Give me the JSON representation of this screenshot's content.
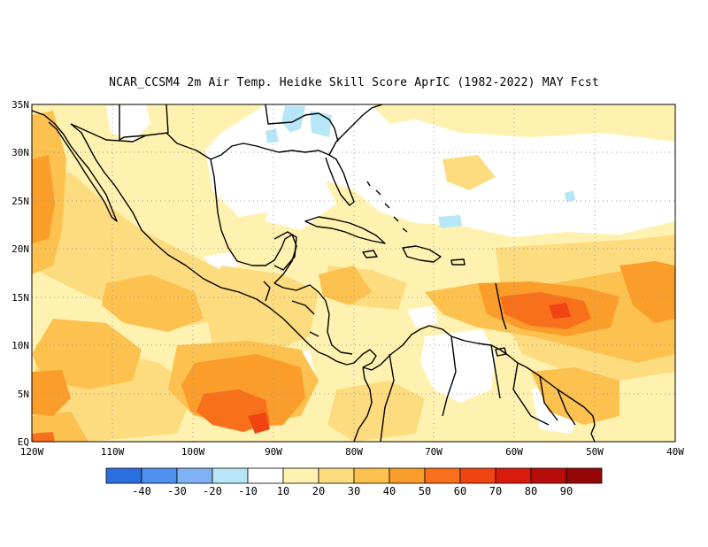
{
  "title": "NCAR_CCSM4  2m Air Temp. Heidke Skill Score AprIC (1982-2022) MAY Fcst",
  "map": {
    "lat_labels": [
      "35N",
      "30N",
      "25N",
      "20N",
      "15N",
      "10N",
      "5N",
      "EQ"
    ],
    "lon_labels": [
      "120W",
      "110W",
      "100W",
      "90W",
      "80W",
      "70W",
      "60W",
      "50W",
      "40W"
    ],
    "lon_range": [
      -120,
      -40
    ],
    "lat_range": [
      0,
      35
    ]
  },
  "colorbar": {
    "colors": [
      "#2c6fe0",
      "#4f8fee",
      "#7eb2f5",
      "#b7e6f7",
      "#ffffff",
      "#fff2b0",
      "#fddc80",
      "#fcc14f",
      "#fa9d2a",
      "#f8701c",
      "#f04512",
      "#d81b0d",
      "#b90d0a",
      "#950606"
    ],
    "labels": [
      "-40",
      "-30",
      "-20",
      "-10",
      "10",
      "20",
      "30",
      "40",
      "50",
      "60",
      "70",
      "80",
      "90"
    ]
  },
  "palette": {
    "white": "#ffffff",
    "light_yellow": "#fff2b0",
    "yellow": "#fddc80",
    "light_orange": "#fcc14f",
    "orange": "#fa9d2a",
    "dark_orange": "#f8701c",
    "red_orange": "#f04512",
    "cyan": "#b7e6f7"
  }
}
